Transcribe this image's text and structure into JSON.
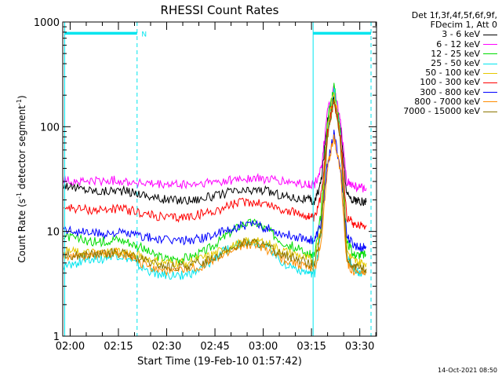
{
  "chart_data": {
    "type": "line",
    "title": "RHESSI Count Rates",
    "xlabel": "Start Time (19-Feb-10 01:57:42)",
    "ylabel": "Count Rate (s",
    "ylabel_sup": "-1",
    "ylabel_tail": " detector segment",
    "ylabel_sup2": "-1",
    "ylabel_close": ")",
    "yscale": "log",
    "ylim": [
      1,
      1000
    ],
    "y_ticks": [
      {
        "value": 1,
        "label": "1"
      },
      {
        "value": 10,
        "label": "10"
      },
      {
        "value": 100,
        "label": "100"
      },
      {
        "value": 1000,
        "label": "1000"
      }
    ],
    "xlim_minutes": [
      117.7,
      215.2
    ],
    "x_ticks": [
      {
        "minutes": 120,
        "label": "02:00"
      },
      {
        "minutes": 135,
        "label": "02:15"
      },
      {
        "minutes": 150,
        "label": "02:30"
      },
      {
        "minutes": 165,
        "label": "02:45"
      },
      {
        "minutes": 180,
        "label": "03:00"
      },
      {
        "minutes": 195,
        "label": "03:15"
      },
      {
        "minutes": 210,
        "label": "03:30"
      }
    ],
    "legend_header": [
      "Det 1f,3f,4f,5f,6f,9f,",
      "FDecim 1, Att 0"
    ],
    "series": [
      {
        "name": "3 - 6 keV",
        "color": "#000000",
        "x": [
          118,
          122,
          126,
          130,
          134,
          138,
          142,
          146,
          150,
          154,
          158,
          162,
          166,
          170,
          174,
          178,
          182,
          186,
          190,
          194,
          196,
          198,
          200,
          202,
          204,
          206,
          208,
          210,
          212
        ],
        "y": [
          28,
          26,
          25,
          24,
          25,
          24,
          23,
          21,
          20,
          20,
          20,
          21,
          22,
          24,
          24,
          25,
          24,
          22,
          21,
          20,
          19,
          30,
          120,
          195,
          100,
          22,
          20,
          19,
          19
        ]
      },
      {
        "name": "6 - 12 keV",
        "color": "#ff00ff",
        "x": [
          118,
          122,
          126,
          130,
          134,
          138,
          142,
          146,
          150,
          154,
          158,
          162,
          166,
          170,
          174,
          178,
          182,
          186,
          190,
          194,
          196,
          198,
          200,
          202,
          204,
          206,
          208,
          210,
          212
        ],
        "y": [
          31,
          30,
          30,
          30,
          31,
          30,
          29,
          28,
          28,
          28,
          28,
          29,
          30,
          31,
          32,
          32,
          31,
          30,
          29,
          28,
          28,
          40,
          140,
          230,
          110,
          30,
          27,
          26,
          26
        ]
      },
      {
        "name": "12 - 25 keV",
        "color": "#00dd00",
        "x": [
          118,
          122,
          126,
          130,
          134,
          138,
          142,
          146,
          150,
          154,
          158,
          162,
          166,
          170,
          174,
          178,
          182,
          186,
          190,
          194,
          196,
          198,
          200,
          202,
          204,
          206,
          208,
          210,
          212
        ],
        "y": [
          9,
          8.5,
          8,
          8,
          8.5,
          8,
          7,
          6,
          5.5,
          5.5,
          5.8,
          6.5,
          8,
          10,
          12,
          12,
          10,
          8,
          7,
          6,
          6,
          15,
          120,
          250,
          90,
          8,
          6,
          6,
          6
        ]
      },
      {
        "name": "25 - 50 keV",
        "color": "#00e5ee",
        "x": [
          118,
          122,
          126,
          130,
          134,
          138,
          142,
          146,
          150,
          154,
          158,
          162,
          166,
          170,
          174,
          178,
          182,
          186,
          190,
          194,
          196,
          198,
          200,
          202,
          204,
          206,
          208,
          210,
          212
        ],
        "y": [
          4.5,
          5,
          5.5,
          5.5,
          6,
          5.5,
          4.5,
          4,
          3.8,
          3.8,
          4,
          4.5,
          6,
          7,
          8,
          8,
          7,
          5,
          4.5,
          4,
          4,
          10,
          90,
          230,
          80,
          6,
          4.5,
          4,
          4
        ]
      },
      {
        "name": "50 - 100 keV",
        "color": "#e5c800",
        "x": [
          118,
          122,
          126,
          130,
          134,
          138,
          142,
          146,
          150,
          154,
          158,
          162,
          166,
          170,
          174,
          178,
          182,
          186,
          190,
          194,
          196,
          198,
          200,
          202,
          204,
          206,
          208,
          210,
          212
        ],
        "y": [
          6.5,
          6.3,
          6.2,
          6.2,
          6.5,
          6.2,
          5.8,
          5.2,
          5,
          5,
          5.2,
          5.6,
          6.3,
          7,
          8,
          8.2,
          7.5,
          6.5,
          6,
          5.4,
          5.2,
          12,
          100,
          220,
          85,
          6.5,
          5.2,
          5,
          5
        ]
      },
      {
        "name": "100 - 300 keV",
        "color": "#ff0000",
        "x": [
          118,
          122,
          126,
          130,
          134,
          138,
          142,
          146,
          150,
          154,
          158,
          162,
          166,
          170,
          174,
          178,
          182,
          186,
          190,
          194,
          196,
          198,
          200,
          202,
          204,
          206,
          208,
          210,
          212
        ],
        "y": [
          17,
          16.5,
          16,
          16,
          16.5,
          16,
          15,
          14,
          13.5,
          13.5,
          14,
          15,
          16,
          18,
          19,
          19,
          18,
          16,
          15,
          14,
          13,
          22,
          90,
          180,
          80,
          14,
          12,
          11.5,
          11.5
        ]
      },
      {
        "name": "300 - 800 keV",
        "color": "#0000ff",
        "x": [
          118,
          122,
          126,
          130,
          134,
          138,
          142,
          146,
          150,
          154,
          158,
          162,
          166,
          170,
          174,
          178,
          182,
          186,
          190,
          194,
          196,
          198,
          200,
          202,
          204,
          206,
          208,
          210,
          212
        ],
        "y": [
          10.5,
          10,
          9.8,
          9.5,
          9.8,
          9.5,
          9,
          8.5,
          8.2,
          8.2,
          8.3,
          8.8,
          9.5,
          10.5,
          11.5,
          11.5,
          10.5,
          9.5,
          9,
          8.5,
          8.2,
          12,
          45,
          85,
          40,
          9,
          7.5,
          7,
          7
        ]
      },
      {
        "name": "800 - 7000 keV",
        "color": "#ff8c00",
        "x": [
          118,
          122,
          126,
          130,
          134,
          138,
          142,
          146,
          150,
          154,
          158,
          162,
          166,
          170,
          174,
          178,
          182,
          186,
          190,
          194,
          196,
          198,
          200,
          202,
          204,
          206,
          208,
          210,
          212
        ],
        "y": [
          5.8,
          5.8,
          6,
          6,
          6.3,
          5.8,
          5,
          4.5,
          4.2,
          4.2,
          4.4,
          4.8,
          5.5,
          6.5,
          7.5,
          7.5,
          6.5,
          5.5,
          5,
          4.5,
          4.3,
          8,
          40,
          80,
          38,
          5,
          4.2,
          4,
          4
        ]
      },
      {
        "name": "7000 - 15000 keV",
        "color": "#8b7500",
        "x": [
          118,
          122,
          126,
          130,
          134,
          138,
          142,
          146,
          150,
          154,
          158,
          162,
          166,
          170,
          174,
          178,
          182,
          186,
          190,
          194,
          196,
          198,
          200,
          202,
          204,
          206,
          208,
          210,
          212
        ],
        "y": [
          6,
          5.9,
          6,
          6,
          6.3,
          6,
          5.4,
          4.9,
          4.6,
          4.6,
          4.8,
          5.2,
          6,
          6.8,
          7.8,
          7.8,
          6.9,
          6,
          5.5,
          5,
          4.8,
          10,
          80,
          180,
          70,
          5.5,
          4.6,
          4.4,
          4.4
        ]
      }
    ],
    "attenuator_bars": [
      {
        "x_from": 118.3,
        "x_to": 140.8,
        "y": 780
      },
      {
        "x_from": 195.5,
        "x_to": 213.5,
        "y": 780
      }
    ],
    "vertical_markers": [
      {
        "minutes": 118.3,
        "style": "solid"
      },
      {
        "minutes": 140.8,
        "style": "dashed"
      },
      {
        "minutes": 195.5,
        "style": "solid"
      },
      {
        "minutes": 213.5,
        "style": "dashed"
      }
    ],
    "marker_label": "N",
    "marker_color": "#00e5ee",
    "grid": false,
    "legend_position": "top-right, outside plot"
  },
  "footer": {
    "date": "14-Oct-2021 08:50"
  }
}
